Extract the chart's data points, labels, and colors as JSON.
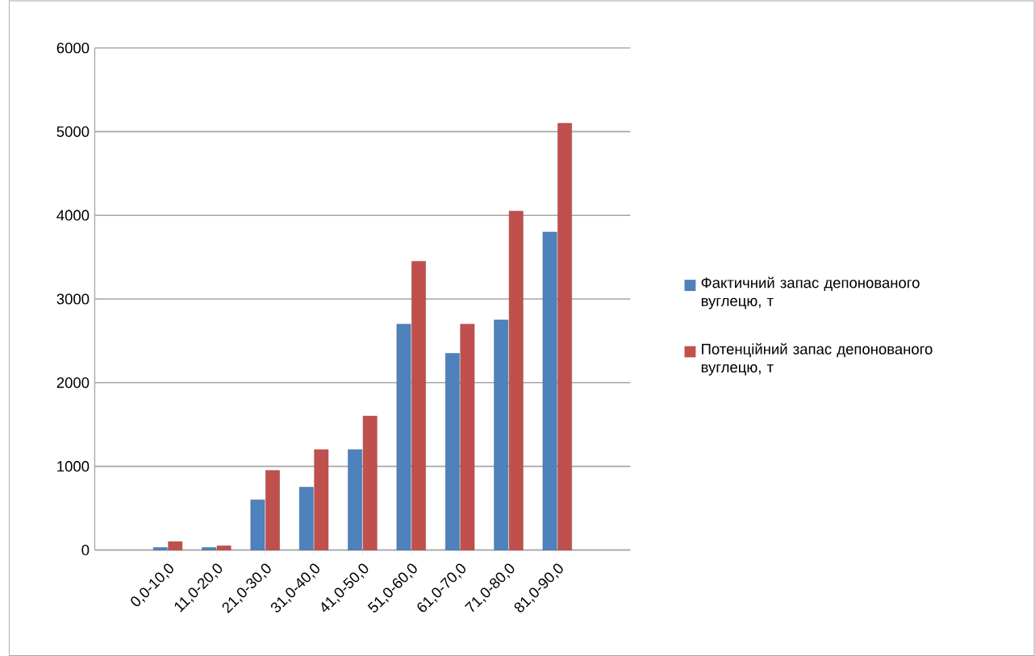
{
  "chart_data": {
    "type": "bar",
    "categories": [
      "0,0-10,0",
      "11,0-20,0",
      "21,0-30,0",
      "31,0-40,0",
      "41,0-50,0",
      "51,0-60,0",
      "61,0-70,0",
      "71,0-80,0",
      "81,0-90,0"
    ],
    "series": [
      {
        "name": "Фактичний запас депонованого вуглецю, т",
        "color": "#4f81bd",
        "values": [
          30,
          30,
          600,
          750,
          1200,
          2700,
          2350,
          2750,
          3800
        ]
      },
      {
        "name": "Потенційний запас депонованого вуглецю, т",
        "color": "#c0504d",
        "values": [
          100,
          50,
          950,
          1200,
          1600,
          3450,
          2700,
          4050,
          5100
        ]
      }
    ],
    "ylim": [
      0,
      6000
    ],
    "yticks": [
      0,
      1000,
      2000,
      3000,
      4000,
      5000,
      6000
    ],
    "grid": "y",
    "legend": "right"
  }
}
